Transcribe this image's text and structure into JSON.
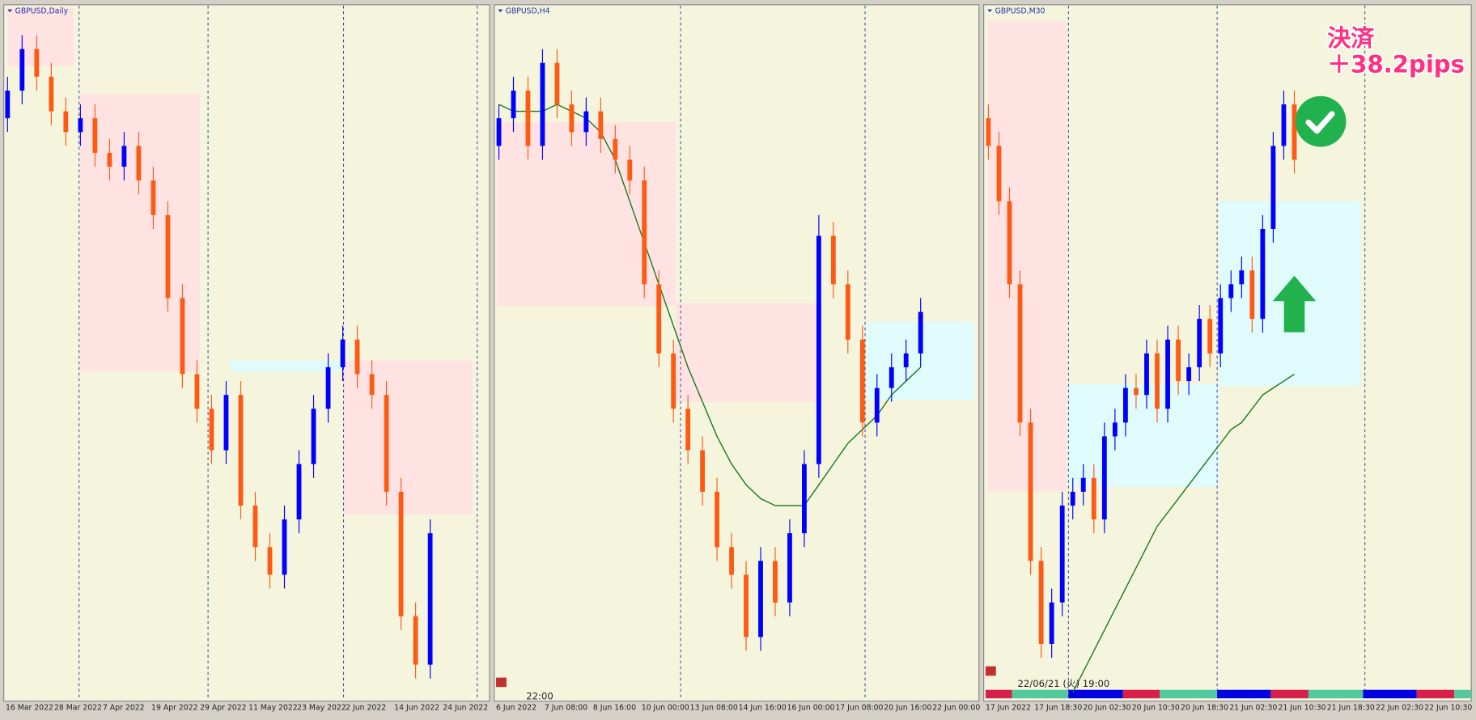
{
  "chart_data": [
    {
      "type": "candlestick",
      "title": "GBPUSD,Daily",
      "ylim": [
        0,
        100
      ],
      "open": [
        84,
        88,
        94,
        90,
        85,
        82,
        84,
        79,
        77,
        80,
        75,
        70,
        58,
        47,
        42,
        36,
        44,
        28,
        22,
        18,
        26,
        34,
        42,
        48,
        52,
        47,
        44,
        30,
        12,
        5
      ],
      "high": [
        90,
        96,
        96,
        92,
        87,
        86,
        86,
        81,
        82,
        82,
        77,
        72,
        60,
        49,
        44,
        46,
        46,
        30,
        24,
        28,
        36,
        44,
        50,
        54,
        54,
        49,
        46,
        32,
        14,
        26
      ],
      "low": [
        82,
        86,
        88,
        83,
        80,
        80,
        77,
        75,
        75,
        73,
        68,
        56,
        45,
        40,
        34,
        34,
        26,
        20,
        16,
        16,
        24,
        32,
        40,
        46,
        45,
        42,
        28,
        10,
        3,
        3
      ],
      "close": [
        88,
        94,
        90,
        85,
        82,
        84,
        79,
        77,
        80,
        75,
        70,
        58,
        47,
        42,
        36,
        44,
        28,
        22,
        18,
        26,
        34,
        42,
        48,
        52,
        47,
        44,
        30,
        12,
        5,
        24
      ],
      "x_labels": [
        "16 Mar 2022",
        "28 Mar 2022",
        "7 Apr 2022",
        "19 Apr 2022",
        "29 Apr 2022",
        "11 May 2022",
        "23 May 2022",
        "2 Jun 2022",
        "14 Jun 2022",
        "24 Jun 2022"
      ]
    },
    {
      "type": "candlestick",
      "title": "GBPUSD,H4",
      "ylim": [
        0,
        100
      ],
      "cursor_label": "22:00",
      "open": [
        80,
        84,
        88,
        80,
        92,
        86,
        82,
        85,
        81,
        78,
        75,
        60,
        50,
        42,
        36,
        30,
        22,
        18,
        9,
        20,
        14,
        24,
        34,
        67,
        60,
        52,
        40,
        45,
        48,
        50
      ],
      "high": [
        86,
        90,
        90,
        94,
        94,
        88,
        87,
        87,
        83,
        80,
        77,
        62,
        52,
        44,
        38,
        32,
        24,
        20,
        22,
        22,
        26,
        36,
        70,
        69,
        62,
        54,
        47,
        50,
        52,
        58
      ],
      "low": [
        78,
        82,
        78,
        78,
        84,
        80,
        80,
        79,
        76,
        73,
        58,
        48,
        40,
        34,
        28,
        20,
        16,
        7,
        7,
        12,
        12,
        22,
        32,
        58,
        50,
        38,
        38,
        43,
        46,
        48
      ],
      "close": [
        84,
        88,
        80,
        92,
        86,
        82,
        85,
        81,
        78,
        75,
        60,
        50,
        42,
        36,
        30,
        22,
        18,
        9,
        20,
        14,
        24,
        34,
        67,
        60,
        52,
        40,
        45,
        48,
        50,
        56
      ],
      "ma": {
        "color": "#1a7a1a",
        "values": [
          86,
          85,
          85,
          85,
          86,
          85,
          84,
          82,
          78,
          72,
          66,
          60,
          54,
          48,
          43,
          38,
          34,
          31,
          29,
          28,
          28,
          28,
          31,
          34,
          37,
          39,
          41,
          44,
          46,
          48
        ]
      },
      "x_labels": [
        "6 Jun 2022",
        "7 Jun 08:00",
        "8 Jun 16:00",
        "10 Jun 00:00",
        "13 Jun 08:00",
        "14 Jun 16:00",
        "16 Jun 00:00",
        "17 Jun 08:00",
        "20 Jun 16:00",
        "22 Jun 00:00"
      ]
    },
    {
      "type": "candlestick",
      "title": "GBPUSD,M30",
      "ylim": [
        0,
        100
      ],
      "cursor_label": "22/06/21 (火) 19:00",
      "annotation": [
        "決済",
        "＋38.2pips"
      ],
      "open": [
        84,
        80,
        72,
        60,
        40,
        20,
        8,
        14,
        28,
        30,
        32,
        26,
        38,
        40,
        45,
        44,
        50,
        42,
        52,
        46,
        48,
        55,
        50,
        58,
        60,
        62,
        55,
        68,
        80,
        86
      ],
      "high": [
        86,
        82,
        74,
        62,
        42,
        22,
        16,
        30,
        32,
        34,
        34,
        40,
        42,
        47,
        47,
        52,
        52,
        54,
        54,
        50,
        57,
        57,
        60,
        62,
        64,
        64,
        70,
        82,
        88,
        88
      ],
      "low": [
        78,
        70,
        58,
        38,
        18,
        6,
        6,
        12,
        26,
        28,
        24,
        24,
        36,
        38,
        42,
        42,
        40,
        40,
        44,
        44,
        46,
        48,
        48,
        56,
        58,
        53,
        53,
        66,
        78,
        76
      ],
      "close": [
        80,
        72,
        60,
        40,
        20,
        8,
        14,
        28,
        30,
        32,
        26,
        38,
        40,
        45,
        44,
        50,
        42,
        52,
        46,
        48,
        55,
        50,
        58,
        60,
        62,
        55,
        68,
        80,
        86,
        78
      ],
      "ma": {
        "color": "#1a7a1a",
        "values": [
          null,
          null,
          null,
          null,
          null,
          null,
          null,
          null,
          1,
          4,
          7,
          10,
          13,
          16,
          19,
          22,
          25,
          27,
          29,
          31,
          33,
          35,
          37,
          39,
          40,
          42,
          44,
          45,
          46,
          47
        ]
      },
      "x_labels": [
        "17 Jun 2022",
        "17 Jun 18:30",
        "20 Jun 02:30",
        "20 Jun 10:30",
        "20 Jun 18:30",
        "21 Jun 02:30",
        "21 Jun 10:30",
        "21 Jun 18:30",
        "22 Jun 02:30",
        "22 Jun 10:30"
      ]
    }
  ]
}
